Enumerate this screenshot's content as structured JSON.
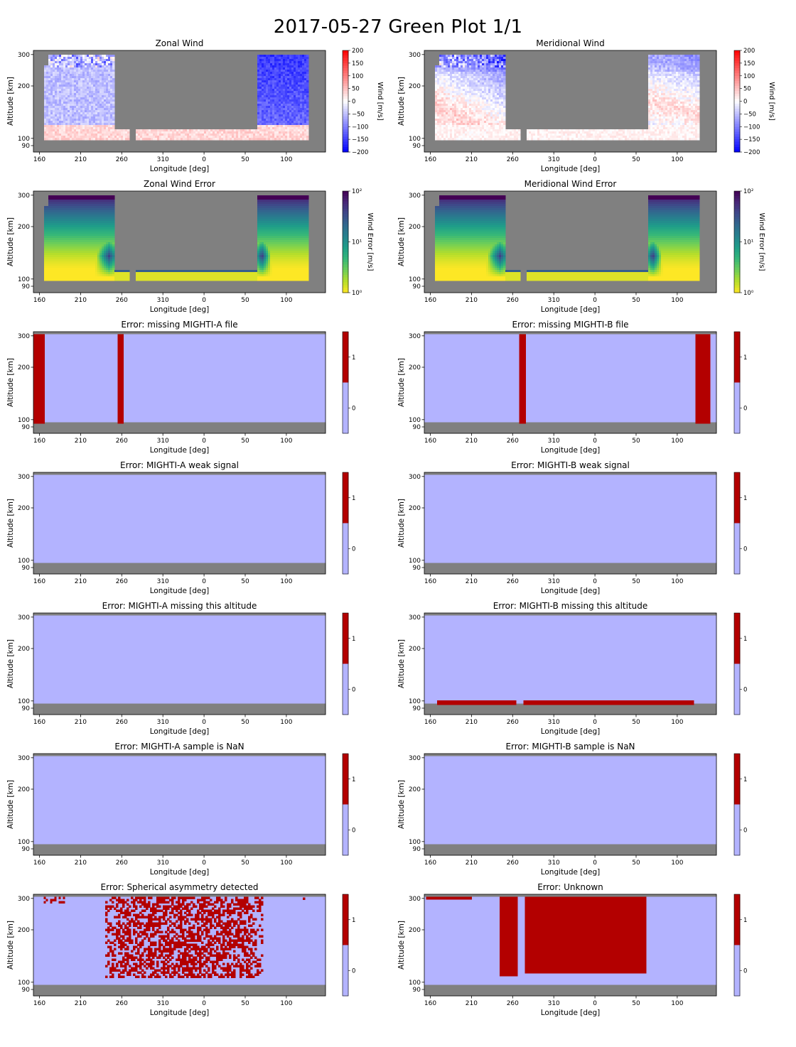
{
  "page": {
    "title": "2017-05-27 Green Plot 1/1"
  },
  "colors": {
    "background_gray": "#808080",
    "flag_zero": "#b3b3ff",
    "flag_one": "#b30000",
    "wind_negative": "#0000ff",
    "wind_positive": "#ff0000",
    "error_low": "#fde725",
    "error_mid": "#21918c",
    "error_high": "#440154"
  },
  "chart_data": [
    {
      "type": "heatmap",
      "title": "Zonal Wind",
      "xlabel": "Longitude [deg]",
      "ylabel": "Altitude [km]",
      "x_tick_labels": [
        "160",
        "210",
        "260",
        "310",
        "0",
        "50",
        "100"
      ],
      "y_tick_labels": [
        "90",
        "100",
        "200",
        "300"
      ],
      "colorbar_label": "Wind [m/s]",
      "colorbar_ticks": [
        "200",
        "150",
        "100",
        "50",
        "0",
        "−50",
        "−100",
        "−150",
        "−200"
      ],
      "colormap": "bwr",
      "zlim": [
        -200,
        200
      ]
    },
    {
      "type": "heatmap",
      "title": "Meridional Wind",
      "xlabel": "Longitude [deg]",
      "ylabel": "Altitude [km]",
      "x_tick_labels": [
        "160",
        "210",
        "260",
        "310",
        "0",
        "50",
        "100"
      ],
      "y_tick_labels": [
        "90",
        "100",
        "200",
        "300"
      ],
      "colorbar_label": "Wind [m/s]",
      "colorbar_ticks": [
        "200",
        "150",
        "100",
        "50",
        "0",
        "−50",
        "−100",
        "−150",
        "−200"
      ],
      "colormap": "bwr",
      "zlim": [
        -200,
        200
      ]
    },
    {
      "type": "heatmap",
      "title": "Zonal Wind Error",
      "xlabel": "Longitude [deg]",
      "ylabel": "Altitude [km]",
      "x_tick_labels": [
        "160",
        "210",
        "260",
        "310",
        "0",
        "50",
        "100"
      ],
      "y_tick_labels": [
        "90",
        "100",
        "200",
        "300"
      ],
      "colorbar_label": "Wind Error [m/s]",
      "colorbar_ticks": [
        "10²",
        "10¹",
        "10⁰"
      ],
      "colormap": "viridis_r",
      "zscale": "log",
      "zlim": [
        1,
        100
      ]
    },
    {
      "type": "heatmap",
      "title": "Meridional Wind Error",
      "xlabel": "Longitude [deg]",
      "ylabel": "Altitude [km]",
      "x_tick_labels": [
        "160",
        "210",
        "260",
        "310",
        "0",
        "50",
        "100"
      ],
      "y_tick_labels": [
        "90",
        "100",
        "200",
        "300"
      ],
      "colorbar_label": "Wind Error [m/s]",
      "colorbar_ticks": [
        "10²",
        "10¹",
        "10⁰"
      ],
      "colormap": "viridis_r",
      "zscale": "log",
      "zlim": [
        1,
        100
      ]
    },
    {
      "type": "heatmap",
      "title": "Error: missing MIGHTI-A file",
      "xlabel": "Longitude [deg]",
      "ylabel": "Altitude [km]",
      "x_tick_labels": [
        "160",
        "210",
        "260",
        "310",
        "0",
        "50",
        "100"
      ],
      "y_tick_labels": [
        "90",
        "100",
        "200",
        "300"
      ],
      "colorbar_ticks": [
        "1",
        "0"
      ],
      "flag_regions": [
        {
          "lon_range": [
            151,
            166
          ],
          "alt_range": [
            95,
            305
          ]
        },
        {
          "lon_range": [
            255,
            262
          ],
          "alt_range": [
            95,
            305
          ]
        }
      ]
    },
    {
      "type": "heatmap",
      "title": "Error: missing MIGHTI-B file",
      "xlabel": "Longitude [deg]",
      "ylabel": "Altitude [km]",
      "x_tick_labels": [
        "160",
        "210",
        "260",
        "310",
        "0",
        "50",
        "100"
      ],
      "y_tick_labels": [
        "90",
        "100",
        "200",
        "300"
      ],
      "colorbar_ticks": [
        "1",
        "0"
      ],
      "flag_regions": [
        {
          "lon_range": [
            268,
            276
          ],
          "alt_range": [
            95,
            305
          ]
        },
        {
          "lon_range": [
            122,
            140
          ],
          "alt_range": [
            95,
            305
          ]
        }
      ]
    },
    {
      "type": "heatmap",
      "title": "Error: MIGHTI-A weak signal",
      "xlabel": "Longitude [deg]",
      "ylabel": "Altitude [km]",
      "x_tick_labels": [
        "160",
        "210",
        "260",
        "310",
        "0",
        "50",
        "100"
      ],
      "y_tick_labels": [
        "90",
        "100",
        "200",
        "300"
      ],
      "colorbar_ticks": [
        "1",
        "0"
      ],
      "flag_regions": []
    },
    {
      "type": "heatmap",
      "title": "Error: MIGHTI-B weak signal",
      "xlabel": "Longitude [deg]",
      "ylabel": "Altitude [km]",
      "x_tick_labels": [
        "160",
        "210",
        "260",
        "310",
        "0",
        "50",
        "100"
      ],
      "y_tick_labels": [
        "90",
        "100",
        "200",
        "300"
      ],
      "colorbar_ticks": [
        "1",
        "0"
      ],
      "flag_regions": []
    },
    {
      "type": "heatmap",
      "title": "Error: MIGHTI-A missing this altitude",
      "xlabel": "Longitude [deg]",
      "ylabel": "Altitude [km]",
      "x_tick_labels": [
        "160",
        "210",
        "260",
        "310",
        "0",
        "50",
        "100"
      ],
      "y_tick_labels": [
        "90",
        "100",
        "200",
        "300"
      ],
      "colorbar_ticks": [
        "1",
        "0"
      ],
      "flag_regions": []
    },
    {
      "type": "heatmap",
      "title": "Error: MIGHTI-B missing this altitude",
      "xlabel": "Longitude [deg]",
      "ylabel": "Altitude [km]",
      "x_tick_labels": [
        "160",
        "210",
        "260",
        "310",
        "0",
        "50",
        "100"
      ],
      "y_tick_labels": [
        "90",
        "100",
        "200",
        "300"
      ],
      "colorbar_ticks": [
        "1",
        "0"
      ],
      "flag_regions": [
        {
          "lon_range": [
            168,
            264
          ],
          "alt_range": [
            95,
            101
          ]
        },
        {
          "lon_range": [
            273,
            120
          ],
          "alt_range": [
            95,
            101
          ]
        }
      ]
    },
    {
      "type": "heatmap",
      "title": "Error: MIGHTI-A sample is NaN",
      "xlabel": "Longitude [deg]",
      "ylabel": "Altitude [km]",
      "x_tick_labels": [
        "160",
        "210",
        "260",
        "310",
        "0",
        "50",
        "100"
      ],
      "y_tick_labels": [
        "90",
        "100",
        "200",
        "300"
      ],
      "colorbar_ticks": [
        "1",
        "0"
      ],
      "flag_regions": []
    },
    {
      "type": "heatmap",
      "title": "Error: MIGHTI-B sample is NaN",
      "xlabel": "Longitude [deg]",
      "ylabel": "Altitude [km]",
      "x_tick_labels": [
        "160",
        "210",
        "260",
        "310",
        "0",
        "50",
        "100"
      ],
      "y_tick_labels": [
        "90",
        "100",
        "200",
        "300"
      ],
      "colorbar_ticks": [
        "1",
        "0"
      ],
      "flag_regions": []
    },
    {
      "type": "heatmap",
      "title": "Error: Spherical asymmetry detected",
      "xlabel": "Longitude [deg]",
      "ylabel": "Altitude [km]",
      "x_tick_labels": [
        "160",
        "210",
        "260",
        "310",
        "0",
        "50",
        "100"
      ],
      "y_tick_labels": [
        "90",
        "100",
        "200",
        "300"
      ],
      "colorbar_ticks": [
        "1",
        "0"
      ],
      "flag_regions": [
        {
          "lon_range": [
            240,
            70
          ],
          "alt_range": [
            110,
            305
          ],
          "pattern": "speckled"
        },
        {
          "lon_range": [
            165,
            190
          ],
          "alt_range": [
            290,
            305
          ],
          "pattern": "speckled"
        },
        {
          "lon_range": [
            120,
            130
          ],
          "alt_range": [
            298,
            303
          ],
          "pattern": "speckled"
        }
      ]
    },
    {
      "type": "heatmap",
      "title": "Error: Unknown",
      "xlabel": "Longitude [deg]",
      "ylabel": "Altitude [km]",
      "x_tick_labels": [
        "160",
        "210",
        "260",
        "310",
        "0",
        "50",
        "100"
      ],
      "y_tick_labels": [
        "90",
        "100",
        "200",
        "300"
      ],
      "colorbar_ticks": [
        "1",
        "0"
      ],
      "flag_regions": [
        {
          "lon_range": [
            155,
            210
          ],
          "alt_range": [
            297,
            305
          ]
        },
        {
          "lon_range": [
            244,
            266
          ],
          "alt_range": [
            112,
            305
          ]
        },
        {
          "lon_range": [
            275,
            62
          ],
          "alt_range": [
            117,
            305
          ]
        }
      ]
    }
  ]
}
